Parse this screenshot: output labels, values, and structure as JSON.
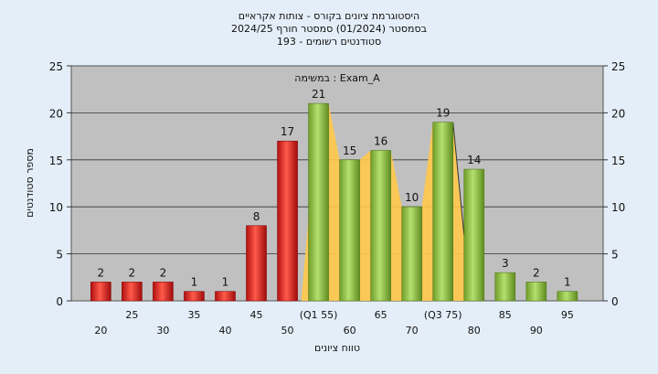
{
  "chart_data": {
    "type": "bar",
    "title": [
      "היסטוגרמת ציונים בקורס - צותות אקראיים",
      "בסמסטר  (01/2024)  סמסטר חורף 2024/25",
      "סטודנטים רשומים - 193"
    ],
    "annotation": "במשימה : Exam_A",
    "xlabel": "טווח ציונים",
    "ylabel": "מספר סטודנטים",
    "ylim": [
      0,
      25
    ],
    "yticks": [
      0,
      5,
      10,
      15,
      20,
      25
    ],
    "grid": true,
    "categories": [
      "20",
      "25",
      "30",
      "35",
      "40",
      "45",
      "50",
      "(Q1 55)",
      "60",
      "65",
      "70",
      "(Q3 75)",
      "80",
      "85",
      "90",
      "95"
    ],
    "values": [
      2,
      2,
      2,
      1,
      1,
      8,
      17,
      21,
      15,
      16,
      10,
      19,
      14,
      3,
      2,
      1
    ],
    "bar_colors": [
      "#e02828",
      "#e02828",
      "#e02828",
      "#e02828",
      "#e02828",
      "#e02828",
      "#e02828",
      "#8cc63e",
      "#8cc63e",
      "#8cc63e",
      "#8cc63e",
      "#8cc63e",
      "#8cc63e",
      "#8cc63e",
      "#8cc63e",
      "#8cc63e"
    ],
    "iqr_band": {
      "from_index": 7,
      "to_index": 11,
      "color": "#ffc94a"
    },
    "colors": {
      "fail": "#e02828",
      "pass": "#8cc63e",
      "plot_bg": "#c0c0c0",
      "page_bg": "#e4eef8"
    }
  }
}
